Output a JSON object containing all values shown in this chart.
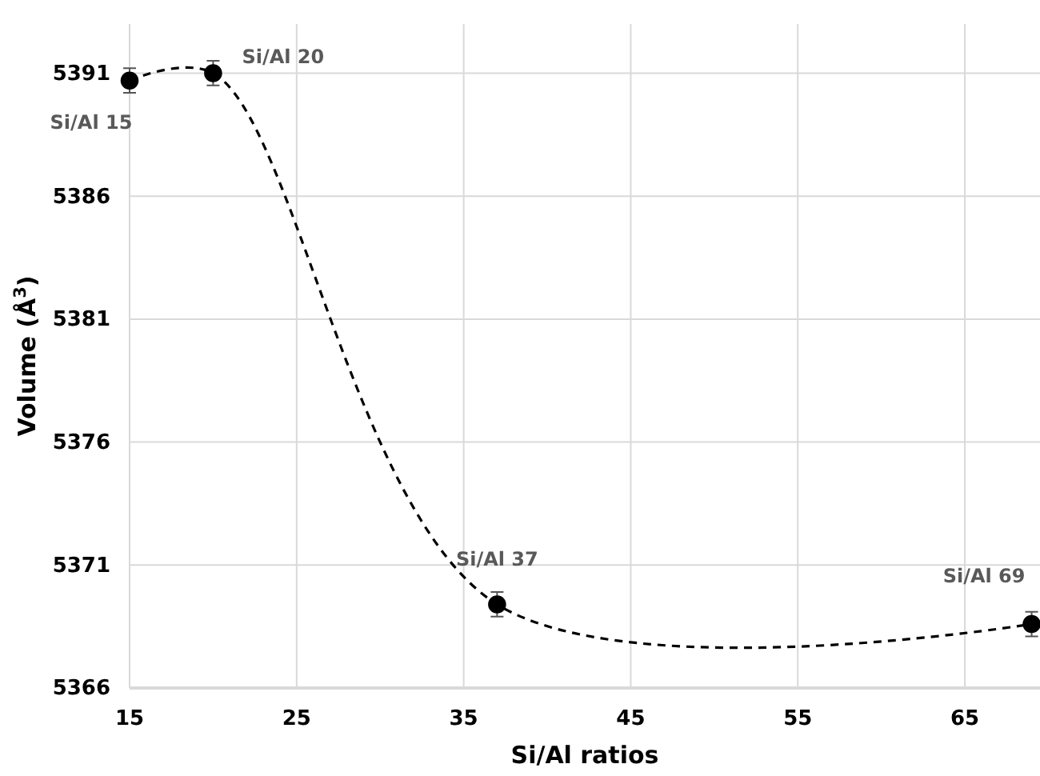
{
  "chart_data": {
    "type": "line",
    "xlabel": "Si/Al ratios",
    "ylabel": "Volume (Å$^{3}$)",
    "x": [
      15,
      20,
      37,
      69
    ],
    "values": [
      5390.7,
      5391.0,
      5369.4,
      5368.6
    ],
    "errors": [
      0.5,
      0.5,
      0.5,
      0.5
    ],
    "color": "#000000",
    "marker": "circle",
    "line_style": "dashed",
    "grid": true,
    "xlim": [
      15,
      69.5
    ],
    "xticks": [
      15,
      25,
      35,
      45,
      55,
      65
    ],
    "ylim": [
      5366,
      5393
    ],
    "yticks": [
      5366,
      5371,
      5376,
      5381,
      5386,
      5391
    ],
    "annotations": [
      {
        "text": "Si/Al 15",
        "x": 15,
        "y": 5390.7
      },
      {
        "text": "Si/Al 20",
        "x": 20,
        "y": 5391.0
      },
      {
        "text": "Si/Al 37",
        "x": 37,
        "y": 5369.4
      },
      {
        "text": "Si/Al 69",
        "x": 69,
        "y": 5368.6
      }
    ]
  }
}
